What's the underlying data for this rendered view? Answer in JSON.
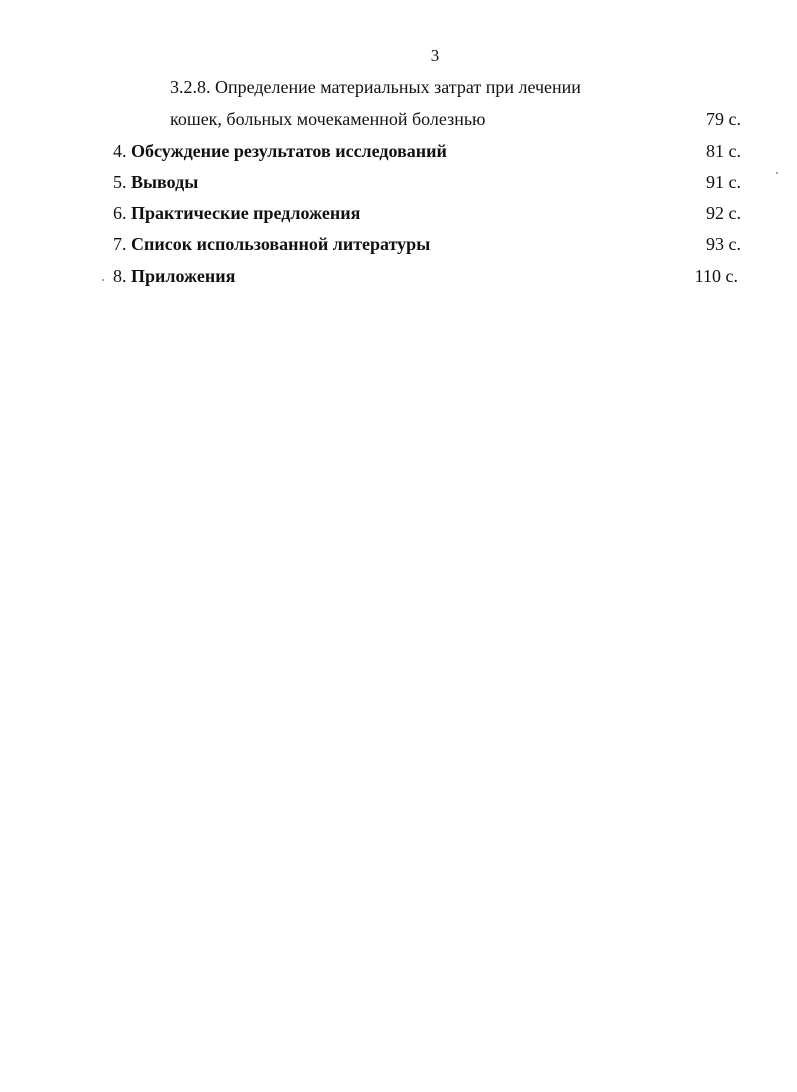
{
  "page_number": "3",
  "toc": [
    {
      "num": "3.2.8.",
      "title": "Определение материальных затрат при лечении",
      "page": "",
      "bold": false
    },
    {
      "num": "",
      "title": "кошек, больных мочекаменной болезнью",
      "page": "79 с.",
      "bold": false
    },
    {
      "num": "4.",
      "title": "Обсуждение результатов исследований",
      "page": "81 с.",
      "bold": true
    },
    {
      "num": "5.",
      "title": "Выводы",
      "page": "91 с.",
      "bold": true
    },
    {
      "num": "6.",
      "title": "Практические предложения",
      "page": "92 с.",
      "bold": true
    },
    {
      "num": "7.",
      "title": "Список использованной литературы",
      "page": "93 с.",
      "bold": true
    },
    {
      "num": "8.",
      "title": "Приложения",
      "page": "110 с.",
      "bold": true
    }
  ]
}
